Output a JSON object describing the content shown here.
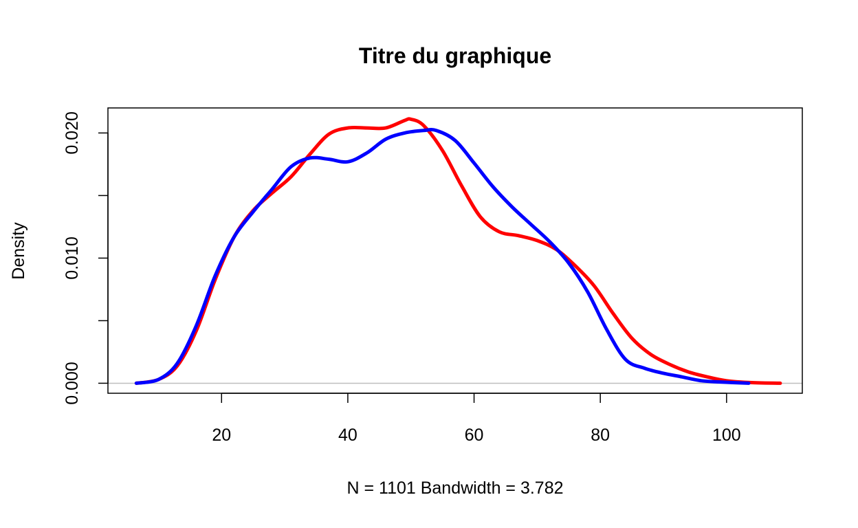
{
  "chart_data": {
    "type": "line",
    "title": "Titre du graphique",
    "xlabel": "N = 1101   Bandwidth = 3.782",
    "ylabel": "Density",
    "xlim": [
      2,
      112
    ],
    "ylim": [
      -0.0008,
      0.022
    ],
    "x_ticks": [
      20,
      40,
      60,
      80,
      100
    ],
    "x_tick_labels": [
      "20",
      "40",
      "60",
      "80",
      "100"
    ],
    "y_ticks": [
      0.0,
      0.005,
      0.01,
      0.015,
      0.02
    ],
    "y_tick_labels": [
      "0.000",
      "",
      "0.010",
      "",
      "0.020"
    ],
    "grid": false,
    "baseline": 0,
    "series": [
      {
        "color": "#ff0000",
        "x": [
          6.5,
          10,
          13,
          16,
          19,
          22,
          25,
          28,
          31,
          34,
          37,
          40,
          43,
          46,
          49,
          50,
          52,
          55,
          58,
          61,
          64,
          67,
          70,
          73,
          76,
          79,
          82,
          85,
          88,
          91,
          94,
          97,
          100,
          104,
          108.5
        ],
        "y": [
          0.0,
          0.0003,
          0.0014,
          0.0042,
          0.0083,
          0.0117,
          0.0138,
          0.0152,
          0.0165,
          0.0183,
          0.0199,
          0.0204,
          0.0204,
          0.0204,
          0.021,
          0.0211,
          0.0206,
          0.0186,
          0.0158,
          0.0133,
          0.0121,
          0.0118,
          0.0114,
          0.0107,
          0.0094,
          0.0078,
          0.0056,
          0.0036,
          0.0023,
          0.0015,
          0.0009,
          0.0005,
          0.0002,
          5e-05,
          0.0
        ]
      },
      {
        "color": "#0000ff",
        "x": [
          6.5,
          10,
          13,
          16,
          19,
          22,
          25,
          28,
          31,
          34,
          37,
          40,
          43,
          46,
          49,
          52,
          54,
          57,
          60,
          63,
          66,
          69,
          72,
          75,
          78,
          81,
          84,
          87,
          90,
          93,
          96,
          99,
          103.5
        ],
        "y": [
          0.0,
          0.0003,
          0.0016,
          0.0046,
          0.0086,
          0.0117,
          0.0137,
          0.0155,
          0.0173,
          0.018,
          0.0179,
          0.0177,
          0.0184,
          0.0195,
          0.02,
          0.0202,
          0.0202,
          0.0194,
          0.0176,
          0.0157,
          0.0141,
          0.0127,
          0.0113,
          0.0096,
          0.0073,
          0.0043,
          0.0019,
          0.0012,
          0.0008,
          0.0005,
          0.0002,
          0.0001,
          0.0
        ]
      }
    ]
  }
}
